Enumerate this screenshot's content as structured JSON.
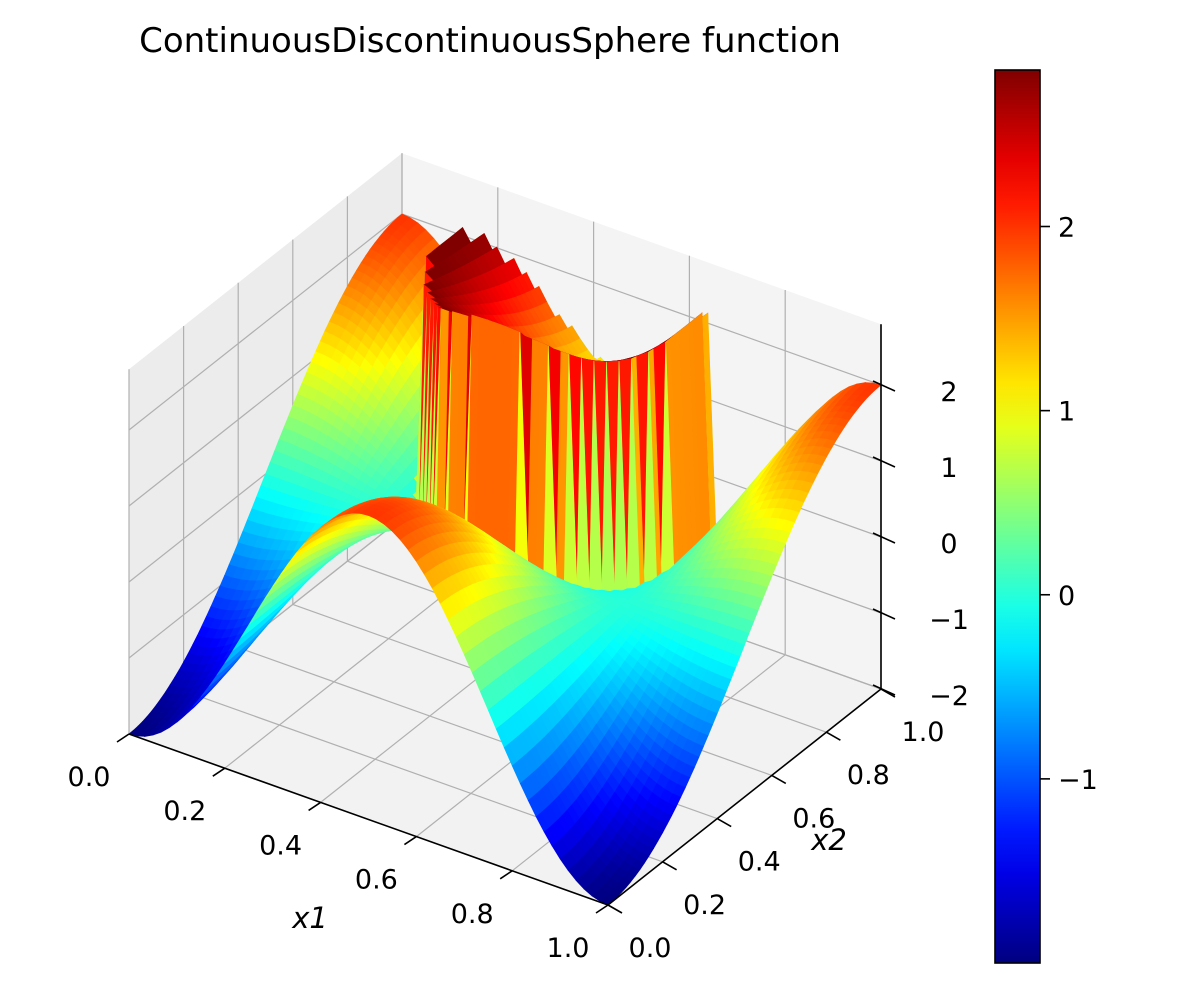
{
  "chart_data": {
    "type": "surface3d",
    "title": "ContinuousDiscontinuousSphere function",
    "xlabel": "x1",
    "ylabel": "x2",
    "zlabel": "",
    "xlim": [
      0,
      1
    ],
    "ylim": [
      0,
      1
    ],
    "zlim": [
      -2,
      2.8
    ],
    "x_ticks": [
      "0.0",
      "0.2",
      "0.4",
      "0.6",
      "0.8",
      "1.0"
    ],
    "y_ticks": [
      "0.0",
      "0.2",
      "0.4",
      "0.6",
      "0.8",
      "1.0"
    ],
    "z_ticks": [
      "−2",
      "−1",
      "0",
      "1",
      "2"
    ],
    "colormap": "jet",
    "colorbar": {
      "min": -2,
      "max": 2.85,
      "ticks": [
        "−1",
        "0",
        "1",
        "2"
      ],
      "tick_values": [
        -1,
        0,
        1,
        2
      ]
    },
    "surface_description_values": {
      "grid_points": 60,
      "min_value": -2,
      "max_value": 2.8,
      "plateau_center": [
        0.5,
        0.72
      ],
      "plateau_radius": 0.26
    },
    "grid": true,
    "pane_color": "#f2f2f2"
  }
}
